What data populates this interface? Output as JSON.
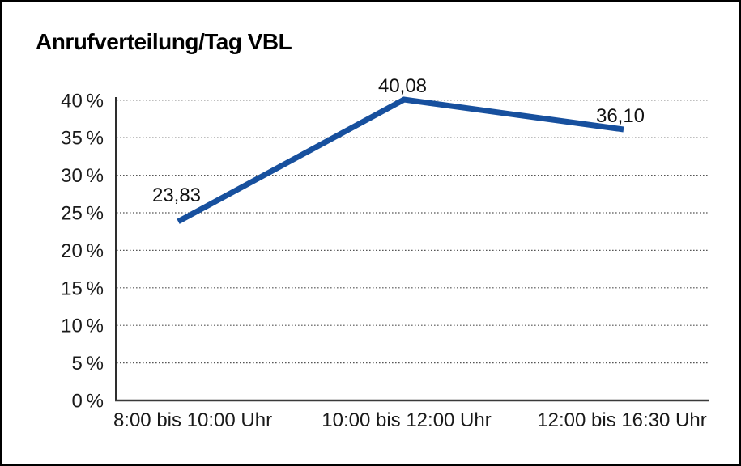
{
  "title": "Anrufverteilung/Tag VBL",
  "chart_data": {
    "type": "line",
    "title": "Anrufverteilung/Tag VBL",
    "categories": [
      "8:00 bis 10:00 Uhr",
      "10:00 bis 12:00 Uhr",
      "12:00 bis 16:30 Uhr"
    ],
    "values": [
      23.83,
      40.08,
      36.1
    ],
    "point_labels": [
      "23,83",
      "40,08",
      "36,10"
    ],
    "y_tick_labels": [
      "0 %",
      "5 %",
      "10 %",
      "15 %",
      "20 %",
      "25 %",
      "30 %",
      "35 %",
      "40 %"
    ],
    "xlabel": "",
    "ylabel": "",
    "ylim": [
      0,
      40
    ],
    "ytick_step": 5,
    "grid": "horizontal-dotted",
    "legend": "none",
    "line_color": "#17509E"
  }
}
